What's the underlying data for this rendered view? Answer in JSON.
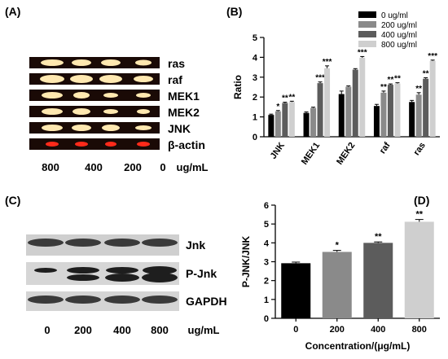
{
  "panels": {
    "a": {
      "label": "(A)",
      "bands": [
        "ras",
        "raf",
        "MEK1",
        "MEK2",
        "JNK",
        "β-actin"
      ],
      "concentrations": [
        "800",
        "400",
        "200",
        "0"
      ],
      "unit": "ug/mL"
    },
    "b": {
      "label": "(B)"
    },
    "c": {
      "label": "(C)",
      "bands": [
        "Jnk",
        "P-Jnk",
        "GAPDH"
      ],
      "concentrations": [
        "0",
        "200",
        "400",
        "800"
      ],
      "unit": "ug/mL"
    },
    "d": {
      "label": "(D)"
    }
  },
  "chart_data": [
    {
      "type": "bar",
      "panel": "B",
      "ylabel": "Ratio",
      "xlabel": "",
      "ylim": [
        0,
        5
      ],
      "yticks": [
        "0",
        "1",
        "2",
        "3",
        "4",
        "5"
      ],
      "categories": [
        "JNK",
        "MEK1",
        "MEK2",
        "raf",
        "ras"
      ],
      "legend_position": "top-right",
      "series": [
        {
          "name": "0 ug/ml",
          "color": "#000000",
          "values": [
            1.1,
            1.2,
            2.15,
            1.55,
            1.75
          ],
          "errors": [
            0.04,
            0.05,
            0.15,
            0.08,
            0.08
          ],
          "sig": [
            "",
            "",
            "",
            "",
            ""
          ]
        },
        {
          "name": "200 ug/ml",
          "color": "#8a8a8a",
          "values": [
            1.28,
            1.45,
            2.52,
            2.22,
            2.12
          ],
          "errors": [
            0.04,
            0.04,
            0.04,
            0.08,
            0.1
          ],
          "sig": [
            "*",
            "",
            "",
            "**",
            "**"
          ]
        },
        {
          "name": "400 ug/ml",
          "color": "#5c5c5c",
          "values": [
            1.7,
            2.7,
            3.38,
            2.62,
            2.92
          ],
          "errors": [
            0.04,
            0.06,
            0.05,
            0.04,
            0.05
          ],
          "sig": [
            "**",
            "***",
            "",
            "**",
            "**"
          ]
        },
        {
          "name": "800 ug/ml",
          "color": "#cfcfcf",
          "values": [
            1.75,
            3.45,
            3.98,
            2.68,
            3.82
          ],
          "errors": [
            0.04,
            0.12,
            0.06,
            0.04,
            0.04
          ],
          "sig": [
            "**",
            "***",
            "***",
            "**",
            "***"
          ]
        }
      ]
    },
    {
      "type": "bar",
      "panel": "D",
      "ylabel": "P-JNK/JNK",
      "xlabel": "Concentration/(μg/mL)",
      "ylim": [
        0,
        6
      ],
      "yticks": [
        "0",
        "1",
        "2",
        "3",
        "4",
        "5",
        "6"
      ],
      "categories": [
        "0",
        "200",
        "400",
        "800"
      ],
      "colors": [
        "#000000",
        "#8a8a8a",
        "#5c5c5c",
        "#cfcfcf"
      ],
      "values": [
        2.92,
        3.52,
        4.0,
        5.12
      ],
      "errors": [
        0.06,
        0.08,
        0.05,
        0.12
      ],
      "sig": [
        "",
        "*",
        "**",
        "**"
      ]
    }
  ]
}
